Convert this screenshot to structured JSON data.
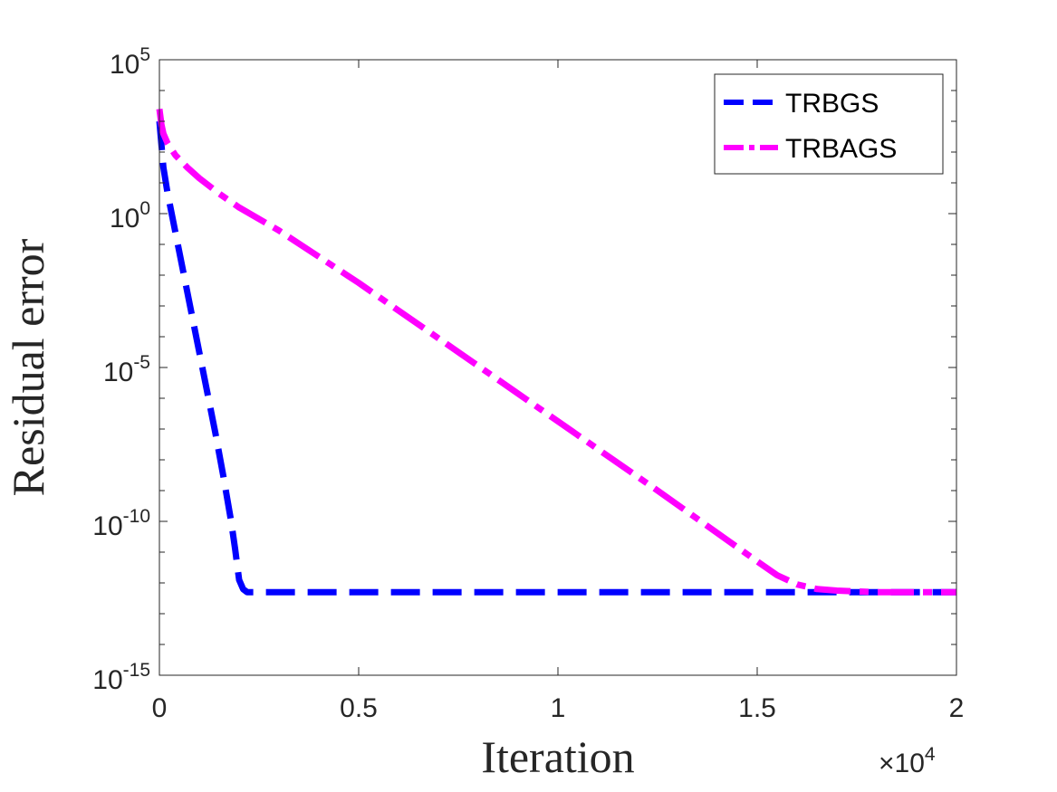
{
  "chart_data": {
    "type": "line",
    "title": "",
    "xlabel": "Iteration",
    "ylabel": "Residual error",
    "x_multiplier": {
      "times": "×",
      "base": "10",
      "exp": "4"
    },
    "xlim": [
      0,
      2
    ],
    "ylim_log10": [
      -15,
      5
    ],
    "x_ticks": [
      {
        "value": 0,
        "label": "0"
      },
      {
        "value": 0.5,
        "label": "0.5"
      },
      {
        "value": 1,
        "label": "1"
      },
      {
        "value": 1.5,
        "label": "1.5"
      },
      {
        "value": 2,
        "label": "2"
      }
    ],
    "y_ticks": [
      {
        "log10": 5,
        "base": "10",
        "exp": "5"
      },
      {
        "log10": 0,
        "base": "10",
        "exp": "0"
      },
      {
        "log10": -5,
        "base": "10",
        "exp": "-5"
      },
      {
        "log10": -10,
        "base": "10",
        "exp": "-10"
      },
      {
        "log10": -15,
        "base": "10",
        "exp": "-15"
      }
    ],
    "series": [
      {
        "name": "TRBGS",
        "color": "#0000ff",
        "style": "dashed",
        "x": [
          0,
          0.01,
          0.02,
          0.04,
          0.06,
          0.08,
          0.1,
          0.12,
          0.14,
          0.16,
          0.18,
          0.19,
          0.2,
          0.21,
          0.22,
          0.5,
          1.0,
          1.5,
          2.0
        ],
        "log10_y": [
          3.0,
          1.5,
          0.7,
          -0.6,
          -1.9,
          -3.2,
          -4.5,
          -5.8,
          -7.1,
          -8.5,
          -10.0,
          -10.9,
          -11.9,
          -12.2,
          -12.3,
          -12.3,
          -12.3,
          -12.3,
          -12.3
        ]
      },
      {
        "name": "TRBAGS",
        "color": "#ff00ff",
        "style": "dash-dot",
        "x": [
          0,
          0.005,
          0.01,
          0.02,
          0.04,
          0.07,
          0.1,
          0.15,
          0.2,
          0.3,
          0.5,
          0.75,
          1.0,
          1.25,
          1.5,
          1.55,
          1.6,
          1.65,
          1.7,
          1.8,
          1.9,
          2.0
        ],
        "log10_y": [
          3.4,
          2.9,
          2.6,
          2.3,
          1.9,
          1.5,
          1.15,
          0.65,
          0.2,
          -0.55,
          -2.25,
          -4.5,
          -6.75,
          -9.0,
          -11.3,
          -11.75,
          -12.05,
          -12.2,
          -12.25,
          -12.3,
          -12.3,
          -12.3
        ]
      }
    ],
    "legend_position": "top-right"
  }
}
